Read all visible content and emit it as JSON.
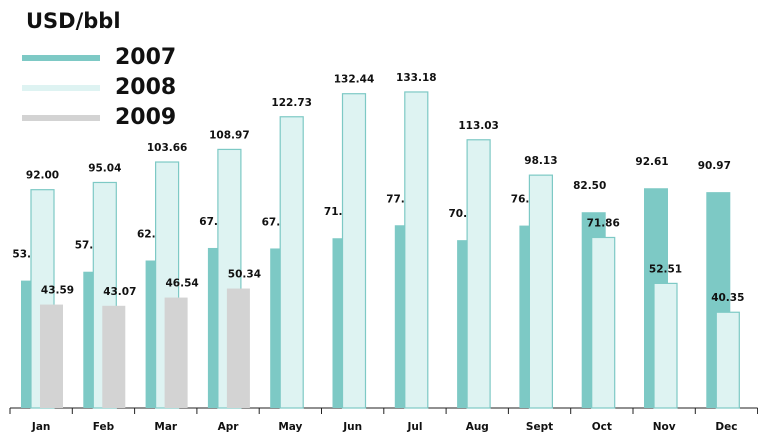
{
  "chart_data": {
    "type": "bar",
    "title": "USD/bbl",
    "categories": [
      "Jan",
      "Feb",
      "Mar",
      "Apr",
      "May",
      "Jun",
      "Jul",
      "Aug",
      "Sept",
      "Oct",
      "Nov",
      "Dec"
    ],
    "series": [
      {
        "name": "2007",
        "color": "#7dc9c5",
        "values": [
          53.68,
          57.43,
          62.15,
          67.44,
          67.23,
          71.54,
          77.01,
          70.73,
          76.87,
          82.5,
          92.61,
          90.97
        ],
        "value_labels": [
          "53.68",
          "57.43",
          "62.15",
          "67.44",
          "67.23",
          "71.54",
          "77.01",
          "70.73",
          "76.87",
          "82.50",
          "92.61",
          "90.97"
        ]
      },
      {
        "name": "2008",
        "color": "#def3f2",
        "values": [
          92,
          95.04,
          103.66,
          108.97,
          122.73,
          132.44,
          133.18,
          113.03,
          98.13,
          71.86,
          52.51,
          40.35
        ],
        "value_labels": [
          "92.00",
          "95.04",
          "103.66",
          "108.97",
          "122.73",
          "132.44",
          "133.18",
          "113.03",
          "98.13",
          "71.86",
          "52.51",
          "40.35"
        ]
      },
      {
        "name": "2009",
        "color": "#d3d3d3",
        "values": [
          43.59,
          43.07,
          46.54,
          50.34,
          null,
          null,
          null,
          null,
          null,
          null,
          null,
          null
        ],
        "value_labels": [
          "43.59",
          "43.07",
          "46.54",
          "50.34",
          null,
          null,
          null,
          null,
          null,
          null,
          null,
          null
        ]
      }
    ]
  }
}
